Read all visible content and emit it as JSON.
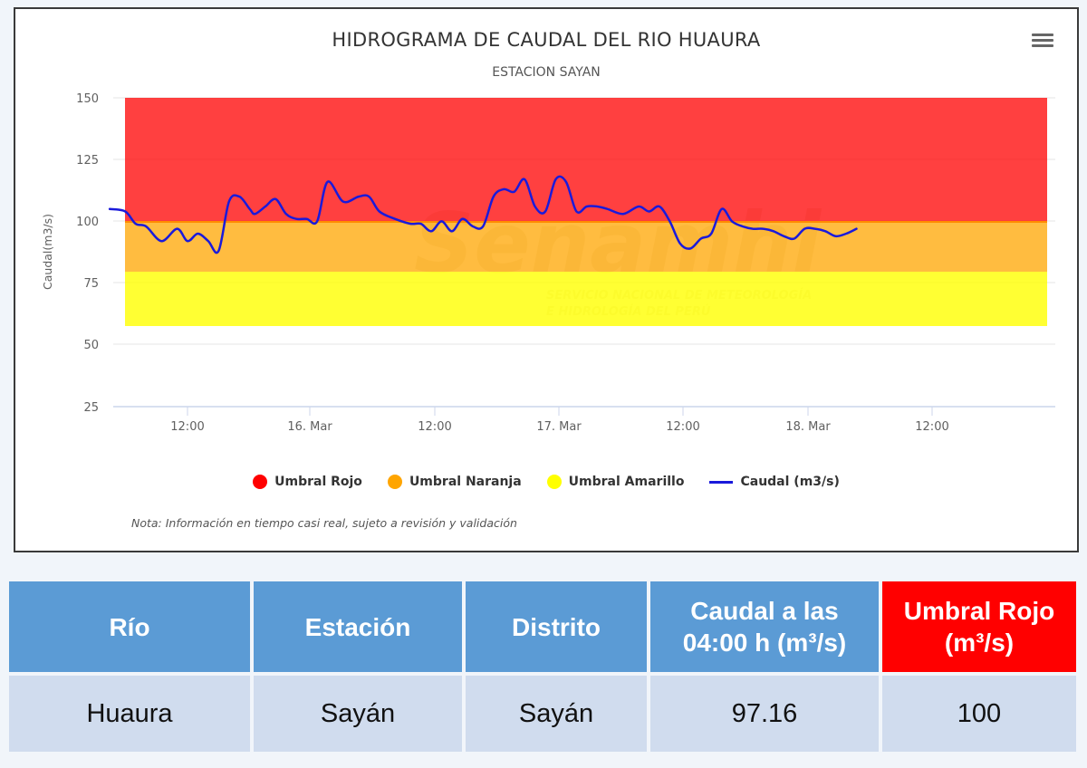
{
  "chart_data": {
    "type": "line",
    "title": "HIDROGRAMA DE CAUDAL DEL RIO HUAURA",
    "subtitle": "ESTACION SAYAN",
    "xlabel": "",
    "ylabel": "Caudal(m3/s)",
    "ylim": [
      25,
      150
    ],
    "yticks": [
      150,
      125,
      100,
      75,
      50,
      25
    ],
    "xticks": [
      "12:00",
      "16. Mar",
      "12:00",
      "17. Mar",
      "12:00",
      "18. Mar",
      "12:00"
    ],
    "grid": true,
    "legend_position": "bottom",
    "bands": [
      {
        "name": "Umbral Rojo",
        "from": 100,
        "to": 150,
        "color": "#ff0000"
      },
      {
        "name": "Umbral Naranja",
        "from": 80,
        "to": 100,
        "color": "#ffa500"
      },
      {
        "name": "Umbral Amarillo",
        "from": 57,
        "to": 80,
        "color": "#ffff00"
      }
    ],
    "series": [
      {
        "name": "Caudal (m3/s)",
        "color": "#1a1adb",
        "x_hours_from_15Mar_00": [
          4.5,
          6,
          7,
          8,
          9.5,
          11,
          12,
          13,
          14,
          15,
          16,
          17,
          18,
          18.5,
          19.5,
          20.5,
          21.5,
          22.5,
          23.5,
          24.5,
          25.5,
          27,
          28.5,
          29.5,
          30.5,
          32,
          33.5,
          34.5,
          35.5,
          36.5,
          37.5,
          38.5,
          39.5,
          40.5,
          41.5,
          42.5,
          43.5,
          44.5,
          45.5,
          46.5,
          47.5,
          48.5,
          49.5,
          50.5,
          51.5,
          52.5,
          54,
          55.5,
          56.5,
          57.5,
          58.5,
          59.5,
          60.5,
          61.5,
          62.5,
          63.5,
          64.5,
          65.5,
          66.5,
          67.5,
          68.5,
          69.5,
          70.5,
          71.5,
          72.5,
          73.5,
          74.5,
          75.5,
          76.5
        ],
        "values": [
          105,
          104,
          99,
          98,
          92,
          97,
          92,
          95,
          92,
          88,
          108,
          110,
          105,
          103,
          106,
          109,
          103,
          101,
          101,
          100,
          116,
          108,
          110,
          110,
          104,
          101,
          99,
          99,
          96,
          100,
          96,
          101,
          98,
          98,
          110,
          113,
          112,
          117,
          106,
          104,
          117,
          116,
          104,
          106,
          106,
          105,
          103,
          106,
          104,
          106,
          100,
          91,
          89,
          93,
          95,
          105,
          100,
          98,
          97,
          97,
          96,
          94,
          93,
          97,
          97,
          96,
          94,
          95,
          97
        ]
      }
    ],
    "current_value": 97.16,
    "note": "Nota: Información en tiempo casi real, sujeto a revisión y validación"
  },
  "chart": {
    "title": "HIDROGRAMA DE CAUDAL DEL RIO HUAURA",
    "subtitle": "ESTACION SAYAN",
    "menu_icon": "hamburger-menu-icon",
    "y_axis_label": "Caudal(m3/s)",
    "yticks": [
      "150",
      "125",
      "100",
      "75",
      "50",
      "25"
    ],
    "xticks": [
      "12:00",
      "16. Mar",
      "12:00",
      "17. Mar",
      "12:00",
      "18. Mar",
      "12:00"
    ],
    "legend": [
      {
        "label": "Umbral Rojo",
        "color": "#ff0000",
        "symbol": "dot"
      },
      {
        "label": "Umbral Naranja",
        "color": "#ffa500",
        "symbol": "dot"
      },
      {
        "label": "Umbral Amarillo",
        "color": "#ffff00",
        "symbol": "dot"
      },
      {
        "label": "Caudal (m3/s)",
        "color": "#1a1adb",
        "symbol": "line"
      }
    ],
    "note": "Nota: Información en tiempo casi real, sujeto a revisión y validación",
    "watermark": {
      "brand": "Senamhi",
      "line1": "SERVICIO NACIONAL DE METEOROLOGÍA",
      "line2": "E HIDROLOGÍA DEL PERÚ"
    }
  },
  "table": {
    "headers": [
      "Río",
      "Estación",
      "Distrito",
      "Caudal a las 04:00 h (m³/s)",
      "Umbral Rojo (m³/s)"
    ],
    "header_lines": [
      [
        "Río"
      ],
      [
        "Estación"
      ],
      [
        "Distrito"
      ],
      [
        "Caudal a las",
        "04:00 h (m³/s)"
      ],
      [
        "Umbral Rojo",
        "(m³/s)"
      ]
    ],
    "rows": [
      [
        "Huaura",
        "Sayán",
        "Sayán",
        "97.16",
        "100"
      ]
    ],
    "colors": {
      "header": "#5b9bd5",
      "header_alert": "#ff0000",
      "cell": "#d0dcee"
    }
  }
}
